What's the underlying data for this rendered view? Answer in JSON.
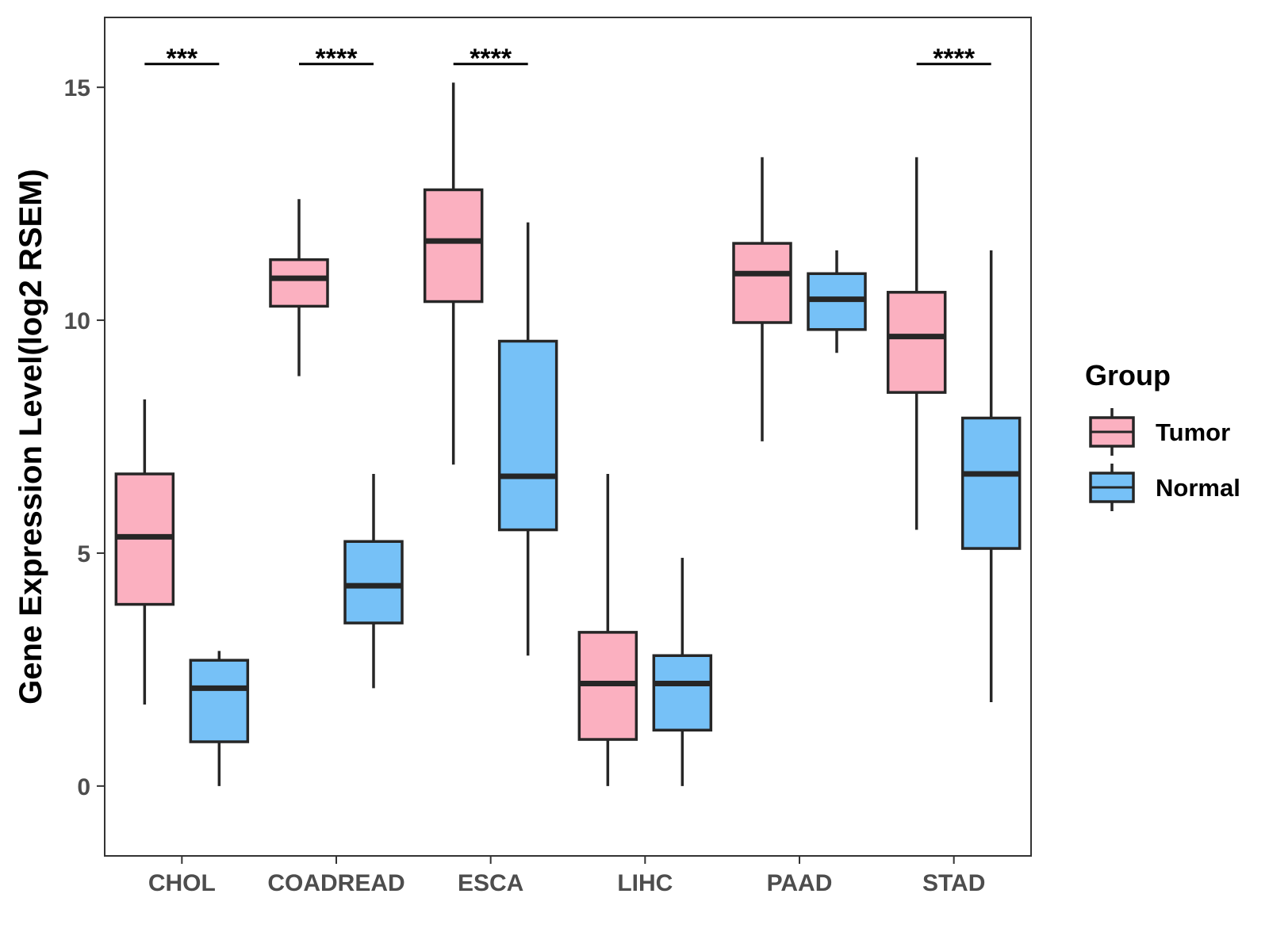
{
  "chart_data": {
    "type": "boxplot",
    "ylabel": "Gene Expression Level(log2 RSEM)",
    "xlabel": "",
    "ylim": [
      -1.5,
      16.5
    ],
    "yticks": [
      0,
      5,
      10,
      15
    ],
    "categories": [
      "CHOL",
      "COADREAD",
      "ESCA",
      "LIHC",
      "PAAD",
      "STAD"
    ],
    "legend": {
      "title": "Group",
      "position": "right",
      "entries": [
        {
          "name": "Tumor",
          "color": "#FBB0C0"
        },
        {
          "name": "Normal",
          "color": "#76C1F7"
        }
      ]
    },
    "series": [
      {
        "name": "Tumor",
        "color": "#FBB0C0",
        "boxes": [
          {
            "category": "CHOL",
            "min": 1.75,
            "q1": 3.9,
            "median": 5.35,
            "q3": 6.7,
            "max": 8.3
          },
          {
            "category": "COADREAD",
            "min": 8.8,
            "q1": 10.3,
            "median": 10.9,
            "q3": 11.3,
            "max": 12.6
          },
          {
            "category": "ESCA",
            "min": 6.9,
            "q1": 10.4,
            "median": 11.7,
            "q3": 12.8,
            "max": 15.1
          },
          {
            "category": "LIHC",
            "min": 0.0,
            "q1": 1.0,
            "median": 2.2,
            "q3": 3.3,
            "max": 6.7
          },
          {
            "category": "PAAD",
            "min": 7.4,
            "q1": 9.95,
            "median": 11.0,
            "q3": 11.65,
            "max": 13.5
          },
          {
            "category": "STAD",
            "min": 5.5,
            "q1": 8.45,
            "median": 9.65,
            "q3": 10.6,
            "max": 13.5
          }
        ]
      },
      {
        "name": "Normal",
        "color": "#76C1F7",
        "boxes": [
          {
            "category": "CHOL",
            "min": 0.0,
            "q1": 0.95,
            "median": 2.1,
            "q3": 2.7,
            "max": 2.9
          },
          {
            "category": "COADREAD",
            "min": 2.1,
            "q1": 3.5,
            "median": 4.3,
            "q3": 5.25,
            "max": 6.7
          },
          {
            "category": "ESCA",
            "min": 2.8,
            "q1": 5.5,
            "median": 6.65,
            "q3": 9.55,
            "max": 12.1
          },
          {
            "category": "LIHC",
            "min": 0.0,
            "q1": 1.2,
            "median": 2.2,
            "q3": 2.8,
            "max": 4.9
          },
          {
            "category": "PAAD",
            "min": 9.3,
            "q1": 9.8,
            "median": 10.45,
            "q3": 11.0,
            "max": 11.5
          },
          {
            "category": "STAD",
            "min": 1.8,
            "q1": 5.1,
            "median": 6.7,
            "q3": 7.9,
            "max": 11.5
          }
        ]
      }
    ],
    "significance": [
      {
        "category": "CHOL",
        "label": "***"
      },
      {
        "category": "COADREAD",
        "label": "****"
      },
      {
        "category": "ESCA",
        "label": "****"
      },
      {
        "category": "STAD",
        "label": "****"
      }
    ],
    "significance_y": 15.5
  }
}
